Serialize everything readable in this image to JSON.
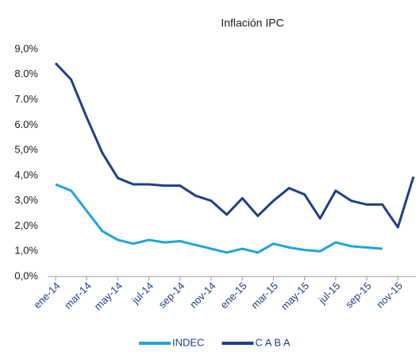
{
  "chart_data": {
    "type": "line",
    "title": "Inflación IPC",
    "categories": [
      "ene-14",
      null,
      "mar-14",
      null,
      "may-14",
      null,
      "jul-14",
      null,
      "sep-14",
      null,
      "nov-14",
      null,
      "ene-15",
      null,
      "mar-15",
      null,
      "may-15",
      null,
      "jul-15",
      null,
      "sep-15",
      null,
      "nov-15",
      null
    ],
    "series": [
      {
        "name": "INDEC",
        "color": "#1fa3dc",
        "values": [
          3.65,
          3.4,
          2.6,
          1.8,
          1.45,
          1.3,
          1.45,
          1.35,
          1.4,
          1.25,
          1.1,
          0.95,
          1.1,
          0.95,
          1.3,
          1.15,
          1.05,
          1.0,
          1.35,
          1.2,
          1.15,
          1.1,
          null,
          null
        ]
      },
      {
        "name": "C A B A",
        "color": "#1d3f86",
        "values": [
          8.45,
          7.8,
          6.3,
          4.9,
          3.9,
          3.65,
          3.65,
          3.6,
          3.6,
          3.2,
          3.0,
          2.45,
          3.1,
          2.4,
          3.0,
          3.5,
          3.25,
          2.3,
          3.4,
          3.0,
          2.85,
          2.85,
          1.95,
          3.95
        ]
      }
    ],
    "ylim": [
      0,
      9
    ],
    "yticks": [
      {
        "value": 0,
        "label": "0,0%"
      },
      {
        "value": 1,
        "label": "1,0%"
      },
      {
        "value": 2,
        "label": "2,0%"
      },
      {
        "value": 3,
        "label": "3,0%"
      },
      {
        "value": 4,
        "label": "4,0%"
      },
      {
        "value": 5,
        "label": "5,0%"
      },
      {
        "value": 6,
        "label": "6.0%"
      },
      {
        "value": 7,
        "label": "7.0%"
      },
      {
        "value": 8,
        "label": "8.0%"
      },
      {
        "value": 9,
        "label": "9,0%"
      }
    ],
    "legend": "bottom"
  }
}
